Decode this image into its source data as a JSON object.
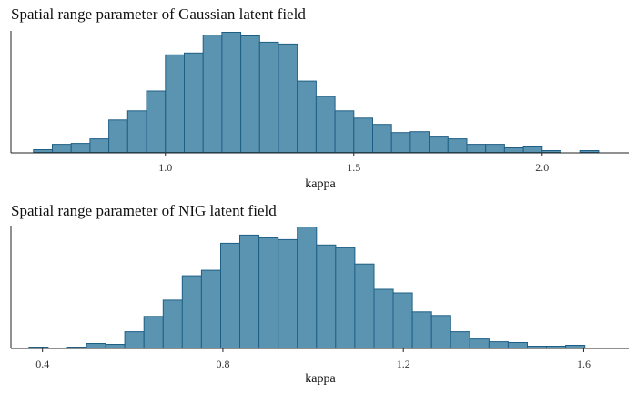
{
  "chart_data": [
    {
      "type": "bar",
      "title": "Spatial range parameter of Gaussian latent field",
      "xlabel": "kappa",
      "ylabel": "",
      "xlim": [
        0.59,
        2.23
      ],
      "ylim": [
        0,
        135
      ],
      "xticks": [
        1.0,
        1.5,
        2.0
      ],
      "xtick_labels": [
        "1.0",
        "1.5",
        "2.0"
      ],
      "bin_width": 0.05,
      "bin_start": 0.65,
      "values": [
        3,
        9,
        10,
        15,
        36,
        46,
        68,
        108,
        110,
        130,
        133,
        129,
        122,
        120,
        79,
        62,
        46,
        38,
        31,
        22,
        23,
        17,
        15,
        9,
        9,
        5,
        6,
        2,
        0,
        2
      ],
      "grid": false,
      "legend": "none"
    },
    {
      "type": "bar",
      "title": "Spatial range parameter of NIG latent field",
      "xlabel": "kappa",
      "ylabel": "",
      "xlim": [
        0.33,
        1.7
      ],
      "ylim": [
        0,
        135
      ],
      "xticks": [
        0.4,
        0.8,
        1.2,
        1.6
      ],
      "xtick_labels": [
        "0.4",
        "0.8",
        "1.2",
        "1.6"
      ],
      "bin_width": 0.0425,
      "bin_start": 0.37,
      "values": [
        1,
        0,
        1,
        5,
        4,
        18,
        35,
        53,
        80,
        86,
        116,
        125,
        122,
        120,
        134,
        114,
        111,
        93,
        65,
        61,
        40,
        36,
        18,
        10,
        7,
        6,
        2,
        2,
        3
      ],
      "grid": false,
      "legend": "none"
    }
  ]
}
